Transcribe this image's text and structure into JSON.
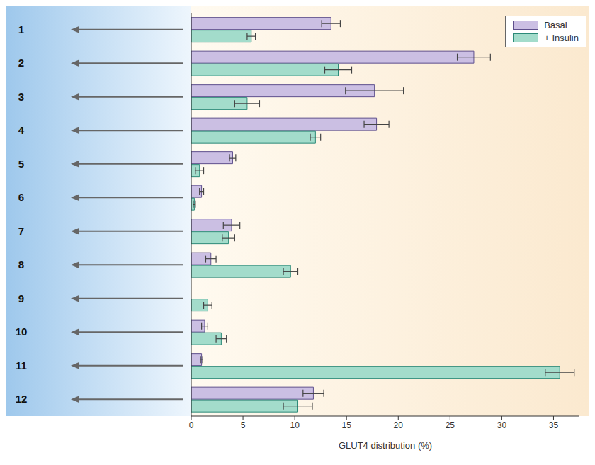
{
  "chart_data": {
    "type": "bar",
    "orientation": "horizontal",
    "categories": [
      "1",
      "2",
      "3",
      "4",
      "5",
      "6",
      "7",
      "8",
      "9",
      "10",
      "11",
      "12"
    ],
    "series": [
      {
        "name": "Basal",
        "color": "#cbbfe3",
        "values": [
          13.5,
          27.3,
          17.7,
          17.9,
          4.0,
          1.0,
          3.9,
          1.9,
          0,
          1.3,
          1.0,
          11.8
        ],
        "errors": [
          0.9,
          1.6,
          2.8,
          1.2,
          0.3,
          0.2,
          0.8,
          0.5,
          0,
          0.3,
          0.1,
          1.0
        ]
      },
      {
        "name": "+ Insulin",
        "color": "#a3dccb",
        "values": [
          5.8,
          14.2,
          5.4,
          12.0,
          0.8,
          0.3,
          3.6,
          9.6,
          1.6,
          2.9,
          35.6,
          10.3
        ],
        "errors": [
          0.4,
          1.3,
          1.2,
          0.5,
          0.4,
          0.1,
          0.6,
          0.7,
          0.4,
          0.5,
          1.4,
          1.4
        ]
      }
    ],
    "x_label": "GLUT4 distribution (%)",
    "xlim": [
      0,
      37.5
    ],
    "xticks": [
      0,
      5,
      10,
      15,
      20,
      25,
      30,
      35
    ],
    "legend": "upper right",
    "grid": false
  }
}
